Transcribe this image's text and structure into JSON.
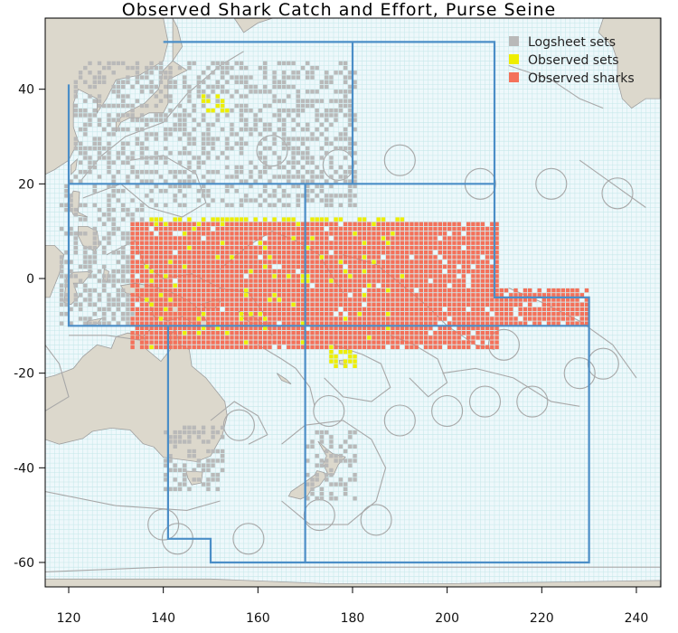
{
  "title": "Observed Shark Catch and Effort, Purse Seine",
  "colors": {
    "ocean": "#eef8fb",
    "grid": "#c6e7ea",
    "land": "#dcd8cc",
    "coast": "#9f9f9f",
    "eez": "#a8a8a8",
    "boundary": "#4b8ec7",
    "logsheet": "#b9b9b9",
    "observed_sets": "#eeee00",
    "observed_sharks": "#f4715a"
  },
  "legend": [
    {
      "label": "Logsheet sets",
      "color": "#b9b9b9"
    },
    {
      "label": "Observed sets",
      "color": "#eeee00"
    },
    {
      "label": "Observed sharks",
      "color": "#f4715a"
    }
  ],
  "axes": {
    "x_ticks": [
      "120",
      "140",
      "160",
      "180",
      "200",
      "220",
      "240"
    ],
    "y_ticks": [
      "40",
      "20",
      "0",
      "-20",
      "-40",
      "-60"
    ],
    "x_tick_values": [
      120,
      140,
      160,
      180,
      200,
      220,
      240
    ],
    "y_tick_values": [
      40,
      20,
      0,
      -20,
      -40,
      -60
    ],
    "x_range": [
      115,
      245
    ],
    "y_range": [
      -65,
      55
    ]
  },
  "chart_data": {
    "type": "heatmap",
    "title": "Observed Shark Catch and Effort, Purse Seine",
    "xlabel": "",
    "ylabel": "",
    "xlim": [
      115,
      245
    ],
    "ylim": [
      -65,
      55
    ],
    "grid": true,
    "legend_position": "top-right",
    "cell_size_deg": 1,
    "series": [
      {
        "name": "Logsheet sets",
        "regions": [
          [
            121,
            180,
            15,
            45
          ],
          [
            118,
            135,
            -10,
            20
          ],
          [
            140,
            152,
            -45,
            -32
          ],
          [
            170,
            180,
            -47,
            -33
          ]
        ]
      },
      {
        "name": "Observed sets",
        "regions": [
          [
            148,
            153,
            35,
            38
          ],
          [
            135,
            190,
            -15,
            12
          ],
          [
            175,
            180,
            -19,
            -16
          ]
        ]
      },
      {
        "name": "Observed sharks",
        "regions": [
          [
            133,
            210,
            -15,
            11
          ],
          [
            210,
            229,
            -10,
            -3
          ]
        ]
      }
    ],
    "boundary_lines": [
      [
        [
          120,
          41
        ],
        [
          120,
          -10
        ],
        [
          170,
          -10
        ]
      ],
      [
        [
          120,
          20
        ],
        [
          210,
          20
        ],
        [
          210,
          -4
        ],
        [
          230,
          -4
        ],
        [
          230,
          -60
        ],
        [
          150,
          -60
        ],
        [
          150,
          -55
        ],
        [
          141,
          -55
        ],
        [
          141,
          -10
        ]
      ],
      [
        [
          140,
          50
        ],
        [
          210,
          50
        ],
        [
          210,
          20
        ]
      ],
      [
        [
          180,
          50
        ],
        [
          180,
          20
        ]
      ],
      [
        [
          170,
          20
        ],
        [
          170,
          -60
        ]
      ],
      [
        [
          170,
          -10
        ],
        [
          230,
          -10
        ]
      ]
    ]
  }
}
